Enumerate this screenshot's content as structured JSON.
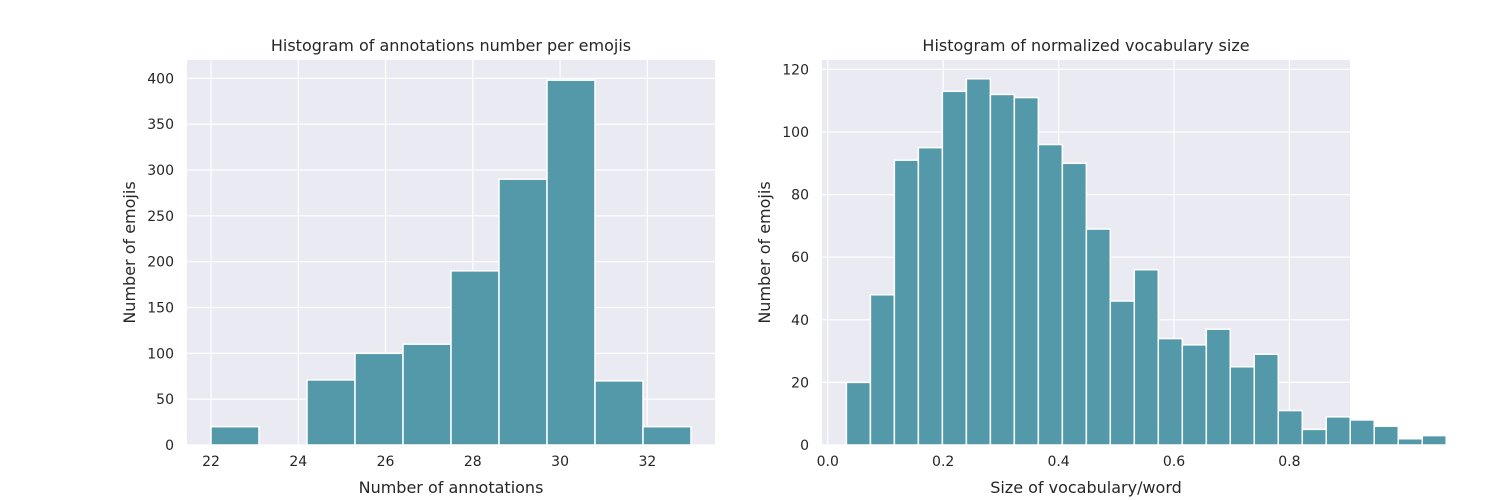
{
  "chart_data": [
    {
      "type": "bar",
      "title": "Histogram of annotations number per emojis",
      "xlabel": "Number of annotations",
      "ylabel": "Number of emojis",
      "bar_color": "#5499aa",
      "background_color": "#eaeaf2",
      "grid": true,
      "xlim": [
        21.45,
        33.55
      ],
      "ylim": [
        0,
        420
      ],
      "x_ticks": [
        22,
        24,
        26,
        28,
        30,
        32
      ],
      "y_ticks": [
        0,
        50,
        100,
        150,
        200,
        250,
        300,
        350,
        400
      ],
      "bins": [
        {
          "x0": 22.0,
          "x1": 23.1,
          "value": 20
        },
        {
          "x0": 23.1,
          "x1": 24.2,
          "value": 0
        },
        {
          "x0": 24.2,
          "x1": 25.3,
          "value": 71
        },
        {
          "x0": 25.3,
          "x1": 26.4,
          "value": 100
        },
        {
          "x0": 26.4,
          "x1": 27.5,
          "value": 110
        },
        {
          "x0": 27.5,
          "x1": 28.6,
          "value": 190
        },
        {
          "x0": 28.6,
          "x1": 29.7,
          "value": 290
        },
        {
          "x0": 29.7,
          "x1": 30.8,
          "value": 398
        },
        {
          "x0": 30.8,
          "x1": 31.9,
          "value": 70
        },
        {
          "x0": 31.9,
          "x1": 33.0,
          "value": 20
        }
      ]
    },
    {
      "type": "bar",
      "title": "Histogram of normalized vocabulary size",
      "xlabel": "Size of vocabulary/word",
      "ylabel": "Number of emojis",
      "bar_color": "#5499aa",
      "background_color": "#eaeaf2",
      "grid": true,
      "xlim": [
        -0.01,
        0.905
      ],
      "ylim": [
        0,
        123
      ],
      "x_ticks": [
        0.0,
        0.2,
        0.4,
        0.6,
        0.8
      ],
      "x_tick_labels": [
        "0.0",
        "0.2",
        "0.4",
        "0.6",
        "0.8"
      ],
      "y_ticks": [
        0,
        20,
        40,
        60,
        80,
        100,
        120
      ],
      "bins": [
        {
          "x0": 0.0323,
          "x1": 0.0739,
          "value": 20
        },
        {
          "x0": 0.0739,
          "x1": 0.1154,
          "value": 48
        },
        {
          "x0": 0.1154,
          "x1": 0.157,
          "value": 91
        },
        {
          "x0": 0.157,
          "x1": 0.1986,
          "value": 95
        },
        {
          "x0": 0.1986,
          "x1": 0.2402,
          "value": 113
        },
        {
          "x0": 0.2402,
          "x1": 0.2818,
          "value": 117
        },
        {
          "x0": 0.2818,
          "x1": 0.3233,
          "value": 112
        },
        {
          "x0": 0.3233,
          "x1": 0.3649,
          "value": 111
        },
        {
          "x0": 0.3649,
          "x1": 0.4065,
          "value": 96
        },
        {
          "x0": 0.4065,
          "x1": 0.4481,
          "value": 90
        },
        {
          "x0": 0.4481,
          "x1": 0.4896,
          "value": 69
        },
        {
          "x0": 0.4896,
          "x1": 0.5312,
          "value": 46
        },
        {
          "x0": 0.5312,
          "x1": 0.5728,
          "value": 56
        },
        {
          "x0": 0.5728,
          "x1": 0.6144,
          "value": 34
        },
        {
          "x0": 0.6144,
          "x1": 0.656,
          "value": 32
        },
        {
          "x0": 0.656,
          "x1": 0.6975,
          "value": 37
        },
        {
          "x0": 0.6975,
          "x1": 0.7391,
          "value": 25
        },
        {
          "x0": 0.7391,
          "x1": 0.7807,
          "value": 29
        },
        {
          "x0": 0.7807,
          "x1": 0.8223,
          "value": 11
        },
        {
          "x0": 0.8223,
          "x1": 0.8638,
          "value": 5
        },
        {
          "x0": 0.8638,
          "x1": 0.9054,
          "value": 9
        },
        {
          "x0": 0.9054,
          "x1": 0.947,
          "value": 8
        },
        {
          "x0": 0.947,
          "x1": 0.9886,
          "value": 6
        },
        {
          "x0": 0.9886,
          "x1": 1.0302,
          "value": 2
        },
        {
          "x0": 1.0302,
          "x1": 1.0717,
          "value": 3
        }
      ]
    }
  ]
}
